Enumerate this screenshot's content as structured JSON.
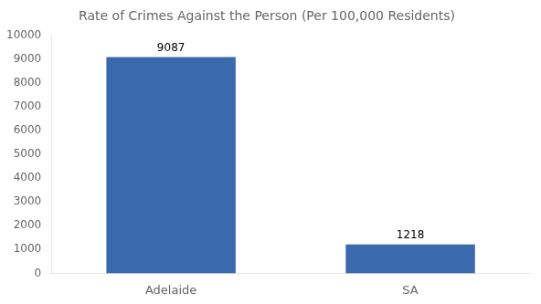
{
  "chart_data": {
    "type": "bar",
    "title": "Rate of Crimes Against the Person (Per 100,000 Residents)",
    "categories": [
      "Adelaide",
      "SA"
    ],
    "values": [
      9087,
      1218
    ],
    "color": "#3a6aad",
    "ylim": [
      0,
      10000
    ],
    "yticks": [
      0,
      1000,
      2000,
      3000,
      4000,
      5000,
      6000,
      7000,
      8000,
      9000,
      10000
    ],
    "grid": false,
    "data_labels": true
  }
}
